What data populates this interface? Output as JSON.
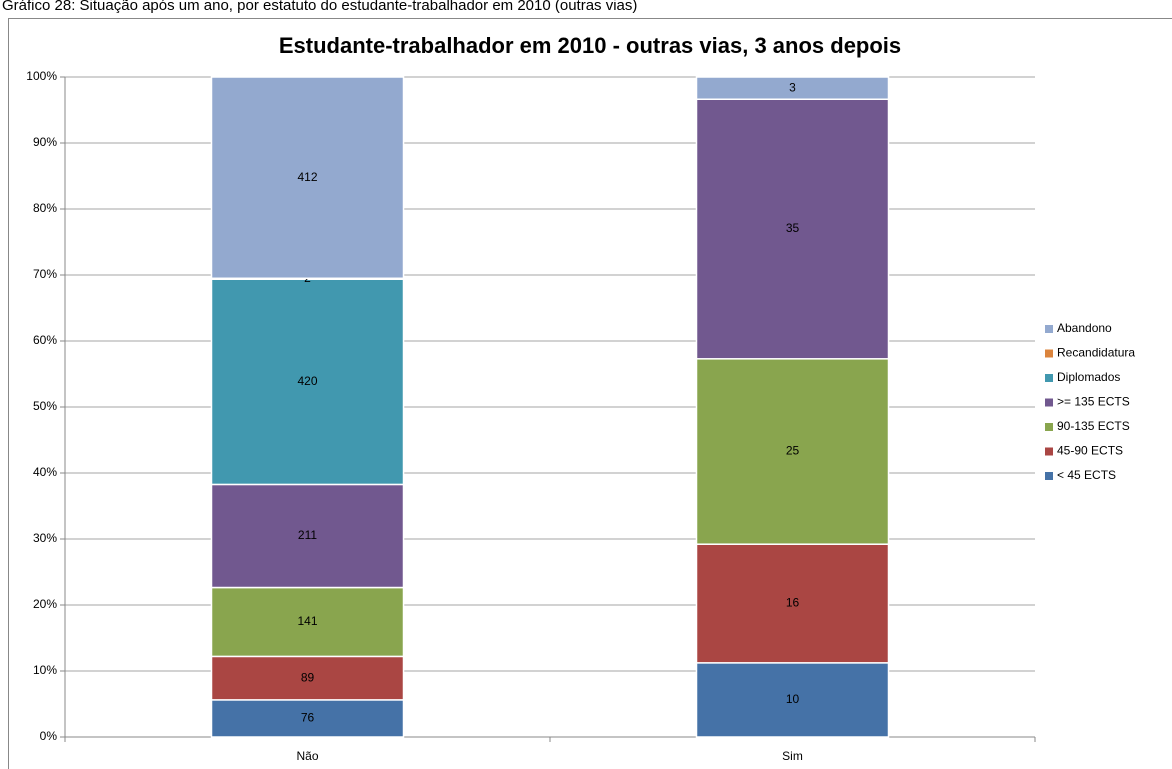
{
  "caption": "Gráfico 28: Situação após um ano, por estatuto do estudante-trabalhador em 2010 (outras vias)",
  "chart_data": {
    "type": "bar",
    "stacking": "percent",
    "title": "Estudante-trabalhador em 2010 - outras vias, 3 anos depois",
    "categories": [
      "Não",
      "Sim"
    ],
    "series": [
      {
        "name": "< 45 ECTS",
        "color": "#4572a7",
        "values": [
          76,
          10
        ]
      },
      {
        "name": "45-90 ECTS",
        "color": "#aa4643",
        "values": [
          89,
          16
        ]
      },
      {
        "name": "90-135 ECTS",
        "color": "#89a54e",
        "values": [
          141,
          25
        ]
      },
      {
        "name": ">= 135 ECTS",
        "color": "#71588f",
        "values": [
          211,
          35
        ]
      },
      {
        "name": "Diplomados",
        "color": "#4198af",
        "values": [
          420,
          null
        ]
      },
      {
        "name": "Recandidatura",
        "color": "#db843d",
        "values": [
          2,
          null
        ]
      },
      {
        "name": "Abandono",
        "color": "#93a9cf",
        "values": [
          412,
          3
        ]
      }
    ],
    "ylim": [
      0,
      100
    ],
    "yticks": [
      {
        "value": 0,
        "label": "0%"
      },
      {
        "value": 10,
        "label": "10%"
      },
      {
        "value": 20,
        "label": "20%"
      },
      {
        "value": 30,
        "label": "30%"
      },
      {
        "value": 40,
        "label": "40%"
      },
      {
        "value": 50,
        "label": "50%"
      },
      {
        "value": 60,
        "label": "60%"
      },
      {
        "value": 70,
        "label": "70%"
      },
      {
        "value": 80,
        "label": "80%"
      },
      {
        "value": 90,
        "label": "90%"
      },
      {
        "value": 100,
        "label": "100%"
      }
    ],
    "grid": true,
    "legend": "right"
  }
}
